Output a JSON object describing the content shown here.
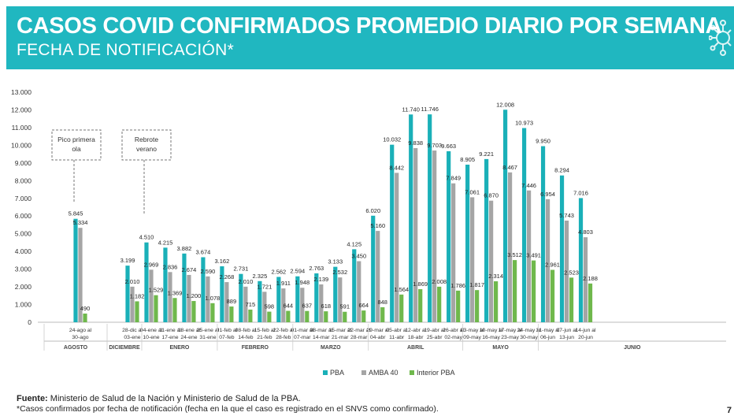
{
  "header": {
    "title": "CASOS COVID CONFIRMADOS PROMEDIO DIARIO POR SEMANA",
    "subtitle": "FECHA DE NOTIFICACIÓN*",
    "icon": "virus-icon"
  },
  "colors": {
    "banner": "#20b7c0",
    "pba": "#1ab0b8",
    "amba": "#a5a5a5",
    "interior": "#6fb84c"
  },
  "chart_data": {
    "type": "bar",
    "ylim": [
      0,
      13000
    ],
    "yticks": [
      "0",
      "1.000",
      "2.000",
      "3.000",
      "4.000",
      "5.000",
      "6.000",
      "7.000",
      "8.000",
      "9.000",
      "10.000",
      "11.000",
      "12.000",
      "13.000"
    ],
    "weeks": [
      {
        "l1": "24-ago al",
        "l2": "30-ago",
        "pba": 5845,
        "amba": 5334,
        "interior": 490,
        "tp": "5.845",
        "ta": "5.334",
        "ti": "490"
      },
      {
        "l1": "28-dic al",
        "l2": "03-ene",
        "pba": 3199,
        "amba": 2010,
        "interior": 1182,
        "tp": "3.199",
        "ta": "2.010",
        "ti": "1.182"
      },
      {
        "l1": "04-ene al",
        "l2": "10-ene",
        "pba": 4510,
        "amba": 2969,
        "interior": 1529,
        "tp": "4.510",
        "ta": "2.969",
        "ti": "1.529"
      },
      {
        "l1": "11-ene al",
        "l2": "17-ene",
        "pba": 4215,
        "amba": 2836,
        "interior": 1369,
        "tp": "4.215",
        "ta": "2.836",
        "ti": "1.369"
      },
      {
        "l1": "18-ene al",
        "l2": "24-ene",
        "pba": 3882,
        "amba": 2674,
        "interior": 1200,
        "tp": "3.882",
        "ta": "2.674",
        "ti": "1.200"
      },
      {
        "l1": "25-ene al",
        "l2": "31-ene",
        "pba": 3674,
        "amba": 2590,
        "interior": 1078,
        "tp": "3.674",
        "ta": "2.590",
        "ti": "1.078"
      },
      {
        "l1": "01-feb al",
        "l2": "07-feb",
        "pba": 3162,
        "amba": 2268,
        "interior": 889,
        "tp": "3.162",
        "ta": "2.268",
        "ti": "889"
      },
      {
        "l1": "08-feb al",
        "l2": "14-feb",
        "pba": 2731,
        "amba": 2010,
        "interior": 715,
        "tp": "2.731",
        "ta": "2.010",
        "ti": "715"
      },
      {
        "l1": "15-feb al",
        "l2": "21-feb",
        "pba": 2325,
        "amba": 1721,
        "interior": 598,
        "tp": "2.325",
        "ta": "1.721",
        "ti": "598"
      },
      {
        "l1": "22-feb al",
        "l2": "28-feb",
        "pba": 2562,
        "amba": 1911,
        "interior": 644,
        "tp": "2.562",
        "ta": "1.911",
        "ti": "644"
      },
      {
        "l1": "01-mar al",
        "l2": "07-mar",
        "pba": 2594,
        "amba": 1948,
        "interior": 637,
        "tp": "2.594",
        "ta": "1.948",
        "ti": "637"
      },
      {
        "l1": "08-mar al",
        "l2": "14-mar",
        "pba": 2763,
        "amba": 2139,
        "interior": 618,
        "tp": "2.763",
        "ta": "2.139",
        "ti": "618"
      },
      {
        "l1": "15-mar al",
        "l2": "21-mar",
        "pba": 3133,
        "amba": 2532,
        "interior": 591,
        "tp": "3.133",
        "ta": "2.532",
        "ti": "591"
      },
      {
        "l1": "22-mar al",
        "l2": "28-mar",
        "pba": 4125,
        "amba": 3450,
        "interior": 664,
        "tp": "4.125",
        "ta": "3.450",
        "ti": "664"
      },
      {
        "l1": "29-mar al",
        "l2": "04-abr",
        "pba": 6020,
        "amba": 5160,
        "interior": 848,
        "tp": "6.020",
        "ta": "5.160",
        "ti": "848"
      },
      {
        "l1": "05-abr al",
        "l2": "11-abr",
        "pba": 10032,
        "amba": 8442,
        "interior": 1564,
        "tp": "10.032",
        "ta": "8.442",
        "ti": "1.564"
      },
      {
        "l1": "12-abr al",
        "l2": "18-abr",
        "pba": 11740,
        "amba": 9838,
        "interior": 1869,
        "tp": "11.740",
        "ta": "9.838",
        "ti": "1.869"
      },
      {
        "l1": "19-abr al",
        "l2": "25-abr",
        "pba": 11746,
        "amba": 9703,
        "interior": 2008,
        "tp": "11.746",
        "ta": "9.703",
        "ti": "2.008"
      },
      {
        "l1": "26-abr al",
        "l2": "02-may",
        "pba": 9663,
        "amba": 7849,
        "interior": 1786,
        "tp": "9.663",
        "ta": "7.849",
        "ti": "1.786"
      },
      {
        "l1": "03-may al",
        "l2": "09-may",
        "pba": 8905,
        "amba": 7061,
        "interior": 1817,
        "tp": "8.905",
        "ta": "7.061",
        "ti": "1.817"
      },
      {
        "l1": "10-may al",
        "l2": "16-may",
        "pba": 9221,
        "amba": 6870,
        "interior": 2314,
        "tp": "9.221",
        "ta": "6.870",
        "ti": "2.314"
      },
      {
        "l1": "17-may al",
        "l2": "23-may",
        "pba": 12008,
        "amba": 8467,
        "interior": 3512,
        "tp": "12.008",
        "ta": "8.467",
        "ti": "3.512"
      },
      {
        "l1": "24-may al",
        "l2": "30-may",
        "pba": 10973,
        "amba": 7446,
        "interior": 3491,
        "tp": "10.973",
        "ta": "7.446",
        "ti": "3.491"
      },
      {
        "l1": "31-may al",
        "l2": "06-jun",
        "pba": 9950,
        "amba": 6954,
        "interior": 2961,
        "tp": "9.950",
        "ta": "6.954",
        "ti": "2.961"
      },
      {
        "l1": "07-jun al",
        "l2": "13-jun",
        "pba": 8294,
        "amba": 5743,
        "interior": 2523,
        "tp": "8.294",
        "ta": "5.743",
        "ti": "2.523"
      },
      {
        "l1": "14-jun al",
        "l2": "20-jun",
        "pba": 7016,
        "amba": 4803,
        "interior": 2188,
        "tp": "7.016",
        "ta": "4.803",
        "ti": "2.188"
      }
    ],
    "months": [
      {
        "name": "AGOSTO",
        "from": 0,
        "to": 0
      },
      {
        "name": "DICIEMBRE",
        "from": 1,
        "to": 1
      },
      {
        "name": "ENERO",
        "from": 2,
        "to": 5
      },
      {
        "name": "FEBRERO",
        "from": 6,
        "to": 9
      },
      {
        "name": "MARZO",
        "from": 10,
        "to": 13
      },
      {
        "name": "ABRIL",
        "from": 14,
        "to": 18
      },
      {
        "name": "MAYO",
        "from": 19,
        "to": 22
      },
      {
        "name": "JUNIO",
        "from": 23,
        "to": 25
      }
    ],
    "annotations": [
      {
        "line1": "Pico primera",
        "line2": "ola",
        "week": 0
      },
      {
        "line1": "Rebrote",
        "line2": "verano",
        "week": 2
      }
    ],
    "legend": [
      "PBA",
      "AMBA 40",
      "Interior PBA"
    ]
  },
  "footer": {
    "source_label": "Fuente:",
    "source_text": " Ministerio de Salud de la Nación y Ministerio de Salud de la PBA.",
    "note": "*Casos confirmados por fecha de notificación (fecha en la que el caso es registrado en el SNVS como confirmado).",
    "page_number": "7"
  }
}
